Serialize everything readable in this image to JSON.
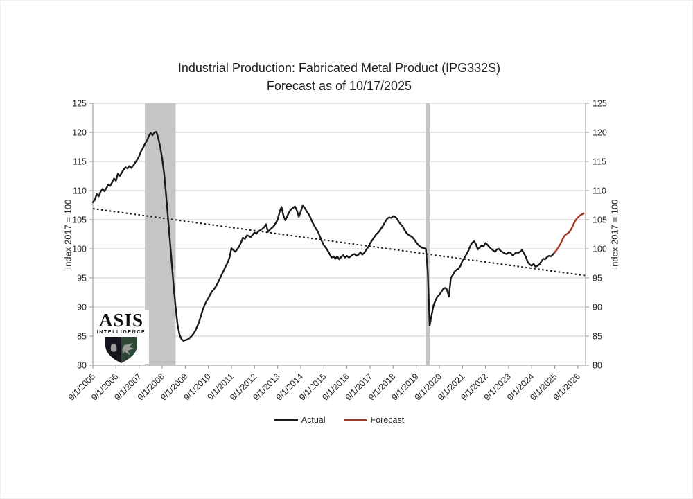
{
  "title": {
    "line1": "Industrial Production: Fabricated Metal Product (IPG332S)",
    "line2": "Forecast as of 10/17/2025"
  },
  "logo": {
    "name": "ASIS",
    "subtitle": "INTELLIGENCE",
    "shield_left_color": "#15151d",
    "shield_right_color": "#2e4636",
    "bird_color": "#9a9a9a"
  },
  "chart_data": {
    "type": "line",
    "title": "Industrial Production: Fabricated Metal Product (IPG332S)",
    "subtitle": "Forecast as of 10/17/2025",
    "ylabel_left": "Index 2017 = 100",
    "ylabel_right": "Index 2017 = 100",
    "ylim": [
      80,
      125
    ],
    "y_ticks": [
      80,
      85,
      90,
      95,
      100,
      105,
      110,
      115,
      120,
      125
    ],
    "x_tick_labels": [
      "9/1/2005",
      "9/1/2006",
      "9/1/2007",
      "9/1/2008",
      "9/1/2009",
      "9/1/2010",
      "9/1/2011",
      "9/1/2012",
      "9/1/2013",
      "9/1/2014",
      "9/1/2015",
      "9/1/2016",
      "9/1/2017",
      "9/1/2018",
      "9/1/2019",
      "9/1/2020",
      "9/1/2021",
      "9/1/2022",
      "9/1/2023",
      "9/1/2024",
      "9/1/2025",
      "9/1/2026"
    ],
    "start_month": "2005-09",
    "x_end_month": "2027-01",
    "grid": true,
    "legend_position": "bottom",
    "gridline_color": "#cccccc",
    "axis_color": "#8f8f8f",
    "band_color": "#c5c5c5",
    "recession_bands": [
      {
        "from": "2007-12",
        "to": "2009-04"
      },
      {
        "from": "2020-02",
        "to": "2020-04"
      }
    ],
    "trendline": {
      "style": "dotted",
      "color": "#1a1a1a",
      "start_value": 106.9,
      "end_value": 95.4
    },
    "series": [
      {
        "name": "Actual",
        "color": "#1a1a1a",
        "start_index": 0,
        "values": [
          108.0,
          108.4,
          109.4,
          109.0,
          109.8,
          110.3,
          109.9,
          110.4,
          111.0,
          110.8,
          111.4,
          112.1,
          111.7,
          112.9,
          112.5,
          113.1,
          113.6,
          114.0,
          113.8,
          114.2,
          113.9,
          114.3,
          114.8,
          115.3,
          115.9,
          116.7,
          117.3,
          118.0,
          118.5,
          119.3,
          119.9,
          119.5,
          120.0,
          120.1,
          119.0,
          117.5,
          115.5,
          113.0,
          109.5,
          105.5,
          101.5,
          97.5,
          93.5,
          90.0,
          87.0,
          85.3,
          84.5,
          84.2,
          84.3,
          84.4,
          84.6,
          84.9,
          85.3,
          85.8,
          86.5,
          87.3,
          88.3,
          89.4,
          90.3,
          91.0,
          91.5,
          92.2,
          92.7,
          93.1,
          93.6,
          94.2,
          94.9,
          95.6,
          96.3,
          97.0,
          97.6,
          98.5,
          100.1,
          99.8,
          99.5,
          99.9,
          100.4,
          101.1,
          101.9,
          101.7,
          102.3,
          102.2,
          102.0,
          102.4,
          102.8,
          102.6,
          103.0,
          103.2,
          103.4,
          103.7,
          104.2,
          102.9,
          103.3,
          103.6,
          103.9,
          104.4,
          105.0,
          106.3,
          107.2,
          105.7,
          104.9,
          105.6,
          106.3,
          106.8,
          107.0,
          107.3,
          106.6,
          105.5,
          106.4,
          107.4,
          107.1,
          106.5,
          106.0,
          105.4,
          104.6,
          104.0,
          103.4,
          102.9,
          102.1,
          101.3,
          100.6,
          100.2,
          99.7,
          99.1,
          98.5,
          98.7,
          98.3,
          98.7,
          98.2,
          98.6,
          98.9,
          98.5,
          98.8,
          98.5,
          98.7,
          99.0,
          99.1,
          98.8,
          99.0,
          99.4,
          99.0,
          99.3,
          99.8,
          100.3,
          100.9,
          101.4,
          101.9,
          102.4,
          102.7,
          103.1,
          103.6,
          104.1,
          104.7,
          105.2,
          105.4,
          105.3,
          105.6,
          105.5,
          105.2,
          104.6,
          104.2,
          103.8,
          103.2,
          102.7,
          102.4,
          102.2,
          102.0,
          101.6,
          101.1,
          100.7,
          100.4,
          100.2,
          100.1,
          100.0,
          96.0,
          86.8,
          88.6,
          90.3,
          91.1,
          91.8,
          92.1,
          92.6,
          93.1,
          93.3,
          93.0,
          91.8,
          95.0,
          95.5,
          96.1,
          96.4,
          96.6,
          97.1,
          97.9,
          98.4,
          99.0,
          99.6,
          100.4,
          101.0,
          101.3,
          100.8,
          99.9,
          100.2,
          100.6,
          100.4,
          101.0,
          100.7,
          100.3,
          100.0,
          99.7,
          99.5,
          99.9,
          100.0,
          99.6,
          99.4,
          99.2,
          99.1,
          99.4,
          99.3,
          98.9,
          99.1,
          99.4,
          99.3,
          99.5,
          99.8,
          99.2,
          98.6,
          97.7,
          97.3,
          97.1,
          97.4,
          96.9,
          97.1,
          97.3,
          97.8,
          98.3,
          98.2,
          98.6,
          98.8,
          98.7,
          99.0,
          99.4
        ]
      },
      {
        "name": "Forecast",
        "color": "#a5361f",
        "start_index": 240,
        "values": [
          99.4,
          99.8,
          100.3,
          100.9,
          101.6,
          102.2,
          102.5,
          102.7,
          103.1,
          103.7,
          104.4,
          105.0,
          105.4,
          105.7,
          105.9,
          106.1
        ]
      }
    ]
  }
}
